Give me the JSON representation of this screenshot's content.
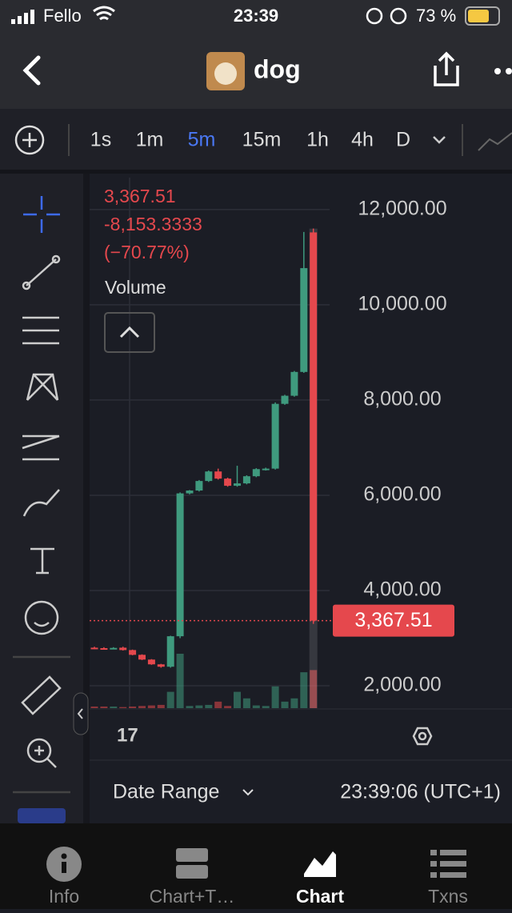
{
  "status_bar": {
    "carrier": "Fello",
    "time": "23:39",
    "battery": "73 %"
  },
  "header": {
    "title": "dog"
  },
  "intervals": {
    "items": [
      "1s",
      "1m",
      "5m",
      "15m",
      "1h",
      "4h",
      "D"
    ],
    "active": 2
  },
  "chart": {
    "type": "candlestick",
    "price": "3,367.51",
    "change": "-8,153.3333",
    "change_pct": "(−70.77%)",
    "volume_label": "Volume",
    "ylim": [
      1530,
      12670
    ],
    "yticks": [
      {
        "value": 2000,
        "label": "2,000.00"
      },
      {
        "value": 4000,
        "label": "4,000.00"
      },
      {
        "value": 6000,
        "label": "6,000.00"
      },
      {
        "value": 8000,
        "label": "8,000.00"
      },
      {
        "value": 10000,
        "label": "10,000.00"
      },
      {
        "value": 12000,
        "label": "12,000.00"
      }
    ],
    "current": {
      "value": 3367.51,
      "label": "3,367.51"
    },
    "x_label": "17",
    "up_color": "#3f9a7e",
    "down_color": "#e5484d",
    "candles": [
      {
        "open": 2800,
        "high": 2820,
        "low": 2770,
        "close": 2780,
        "volume": 3
      },
      {
        "open": 2790,
        "high": 2810,
        "low": 2770,
        "close": 2780,
        "volume": 3
      },
      {
        "open": 2780,
        "high": 2810,
        "low": 2770,
        "close": 2795,
        "volume": 3
      },
      {
        "open": 2800,
        "high": 2820,
        "low": 2740,
        "close": 2750,
        "volume": 2
      },
      {
        "open": 2750,
        "high": 2760,
        "low": 2640,
        "close": 2650,
        "volume": 3
      },
      {
        "open": 2650,
        "high": 2660,
        "low": 2540,
        "close": 2550,
        "volume": 4
      },
      {
        "open": 2550,
        "high": 2560,
        "low": 2440,
        "close": 2450,
        "volume": 5
      },
      {
        "open": 2450,
        "high": 2460,
        "low": 2380,
        "close": 2400,
        "volume": 6
      },
      {
        "open": 2400,
        "high": 3050,
        "low": 2380,
        "close": 3040,
        "volume": 30
      },
      {
        "open": 3040,
        "high": 6060,
        "low": 3000,
        "close": 6040,
        "volume": 100
      },
      {
        "open": 6040,
        "high": 6110,
        "low": 6020,
        "close": 6100,
        "volume": 4
      },
      {
        "open": 6100,
        "high": 6320,
        "low": 6080,
        "close": 6300,
        "volume": 5
      },
      {
        "open": 6300,
        "high": 6520,
        "low": 6280,
        "close": 6500,
        "volume": 6
      },
      {
        "open": 6500,
        "high": 6560,
        "low": 6330,
        "close": 6350,
        "volume": 12
      },
      {
        "open": 6350,
        "high": 6370,
        "low": 6180,
        "close": 6200,
        "volume": 4
      },
      {
        "open": 6200,
        "high": 6620,
        "low": 6180,
        "close": 6250,
        "volume": 30
      },
      {
        "open": 6250,
        "high": 6420,
        "low": 6230,
        "close": 6400,
        "volume": 18
      },
      {
        "open": 6400,
        "high": 6570,
        "low": 6380,
        "close": 6550,
        "volume": 5
      },
      {
        "open": 6540,
        "high": 6580,
        "low": 6520,
        "close": 6560,
        "volume": 4
      },
      {
        "open": 6560,
        "high": 7950,
        "low": 6540,
        "close": 7920,
        "volume": 40
      },
      {
        "open": 7920,
        "high": 8110,
        "low": 7900,
        "close": 8090,
        "volume": 12
      },
      {
        "open": 8090,
        "high": 8610,
        "low": 8070,
        "close": 8590,
        "volume": 18
      },
      {
        "open": 8590,
        "high": 11530,
        "low": 8570,
        "close": 10770,
        "volume": 66
      },
      {
        "open": 11520,
        "high": 11600,
        "low": 3300,
        "close": 3367.51,
        "volume": 70
      }
    ]
  },
  "footer": {
    "date_range": "Date Range",
    "time": "23:39:06 (UTC+1)"
  },
  "tabs": {
    "items": [
      "Info",
      "Chart+T…",
      "Chart",
      "Txns"
    ],
    "active": 2
  }
}
